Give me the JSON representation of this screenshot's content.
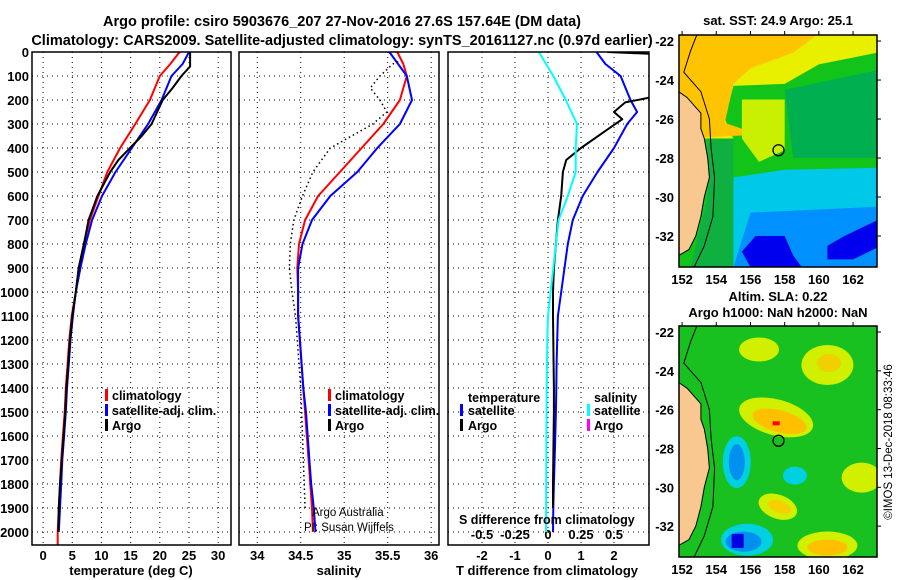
{
  "title": {
    "line1": "Argo profile: csiro 5903676_207 27-Nov-2016 27.6S 157.64E (DM data)",
    "line2": "Climatology: CARS2009. Satellite-adjusted climatology: synTS_20161127.nc (0.97d earlier)"
  },
  "depth_axis": {
    "ticks": [
      "0",
      "100",
      "200",
      "300",
      "400",
      "500",
      "600",
      "700",
      "800",
      "900",
      "1000",
      "1100",
      "1200",
      "1300",
      "1400",
      "1500",
      "1600",
      "1700",
      "1800",
      "1900",
      "2000"
    ]
  },
  "chart_data": [
    {
      "id": "temperature",
      "type": "line",
      "xlabel": "temperature (deg C)",
      "ylabel": "depth",
      "xlim": [
        -1.9,
        32.2
      ],
      "ylim": [
        2054,
        0
      ],
      "xticks": [
        "0",
        "5",
        "10",
        "15",
        "20",
        "25",
        "30"
      ],
      "xtick_values": [
        0,
        5,
        10,
        15,
        20,
        25,
        30
      ],
      "grid": true,
      "legend": {
        "placement": "lower-center",
        "items": [
          {
            "label": "climatology",
            "color": "#ff0000"
          },
          {
            "label": "satellite-adj. clim.",
            "color": "#0000ff"
          },
          {
            "label": "Argo",
            "color": "#000000"
          }
        ]
      },
      "series": [
        {
          "name": "climatology",
          "color": "#ff0000",
          "depth": [
            0,
            50,
            100,
            200,
            300,
            400,
            500,
            600,
            700,
            800,
            900,
            1000,
            1100,
            1200,
            1300,
            1400,
            1500,
            1600,
            1700,
            1800,
            1900,
            2000,
            2054
          ],
          "values": [
            23.4,
            21.8,
            20.0,
            18.3,
            15.8,
            13.2,
            11.0,
            9.5,
            8.0,
            7.0,
            6.1,
            5.6,
            4.9,
            4.5,
            4.2,
            3.9,
            3.7,
            3.4,
            3.1,
            2.9,
            2.7,
            2.5,
            2.5
          ]
        },
        {
          "name": "satellite-adj. clim.",
          "color": "#0000ff",
          "depth": [
            0,
            50,
            100,
            200,
            300,
            400,
            500,
            600,
            700,
            800,
            900,
            1000,
            1100,
            1200,
            1300,
            1400,
            1500,
            1600,
            1700,
            1800,
            1900,
            2000
          ],
          "values": [
            25.0,
            23.9,
            22.0,
            20.3,
            18.0,
            15.2,
            12.4,
            10.1,
            8.4,
            7.3,
            6.4,
            5.6,
            5.1,
            4.7,
            4.4,
            4.1,
            3.9,
            3.6,
            3.3,
            3.1,
            2.9,
            2.7
          ]
        },
        {
          "name": "Argo",
          "color": "#000000",
          "depth": [
            0,
            60,
            100,
            150,
            200,
            300,
            350,
            400,
            450,
            500,
            600,
            700,
            800,
            900,
            1000,
            1100,
            1200,
            1300,
            1400,
            1500,
            1600,
            1700,
            1800,
            1900,
            2000
          ],
          "values": [
            25.2,
            25.2,
            23.7,
            22.2,
            20.5,
            18.6,
            16.9,
            14.9,
            12.9,
            11.5,
            9.3,
            7.8,
            7.0,
            6.1,
            5.6,
            5.0,
            4.6,
            4.3,
            4.0,
            3.8,
            3.5,
            3.2,
            2.9,
            2.7,
            2.6
          ]
        }
      ]
    },
    {
      "id": "salinity",
      "type": "line",
      "xlabel": "salinity",
      "ylabel": "depth",
      "xlim": [
        33.79,
        36.09
      ],
      "ylim": [
        2054,
        0
      ],
      "xticks": [
        "34",
        "34.5",
        "35",
        "35.5",
        "36"
      ],
      "xtick_values": [
        34,
        34.5,
        35,
        35.5,
        36
      ],
      "grid": true,
      "annotations": [
        "Argo Australia",
        "PI: Susan Wijffels"
      ],
      "legend": {
        "placement": "lower-right",
        "items": [
          {
            "label": "climatology",
            "color": "#ff0000"
          },
          {
            "label": "satellite-adj. clim.",
            "color": "#0000ff"
          },
          {
            "label": "Argo",
            "color": "#000000"
          }
        ]
      },
      "series": [
        {
          "name": "climatology",
          "color": "#ff0000",
          "depth": [
            0,
            50,
            100,
            200,
            300,
            400,
            500,
            600,
            700,
            800,
            900,
            1000,
            1100,
            1200,
            1300,
            1400,
            1500,
            1600,
            1700,
            1800,
            1900,
            2000
          ],
          "values": [
            35.61,
            35.68,
            35.72,
            35.64,
            35.45,
            35.2,
            34.95,
            34.7,
            34.55,
            34.48,
            34.46,
            34.47,
            34.47,
            34.49,
            34.51,
            34.53,
            34.55,
            34.57,
            34.59,
            34.61,
            34.63,
            34.64
          ]
        },
        {
          "name": "satellite-adj. clim.",
          "color": "#0000ff",
          "depth": [
            0,
            100,
            200,
            300,
            400,
            500,
            600,
            700,
            800,
            900,
            1000,
            1100,
            1200,
            1300,
            1400,
            1500,
            1600,
            1700,
            1800,
            1900,
            2000
          ],
          "values": [
            35.52,
            35.72,
            35.78,
            35.64,
            35.38,
            35.15,
            34.84,
            34.63,
            34.52,
            34.47,
            34.47,
            34.47,
            34.49,
            34.51,
            34.53,
            34.56,
            34.58,
            34.6,
            34.62,
            34.65,
            34.67
          ]
        },
        {
          "name": "Argo",
          "color": "#000000",
          "style": "dotted",
          "depth": [
            40,
            50,
            100,
            150,
            200,
            250,
            300,
            400,
            500,
            600,
            700,
            800,
            900,
            1000,
            1100,
            1200,
            1300,
            1400,
            1500,
            1600,
            1700,
            1800,
            1900
          ],
          "values": [
            35.62,
            35.56,
            35.41,
            35.3,
            35.41,
            35.49,
            35.33,
            34.84,
            34.64,
            34.52,
            34.42,
            34.38,
            34.37,
            34.4,
            34.44,
            34.46,
            34.48,
            34.5,
            34.51,
            34.52,
            34.53,
            34.54,
            34.55
          ]
        }
      ]
    },
    {
      "id": "difference",
      "type": "line",
      "xlabel": "T difference from climatology",
      "secondary_xlabel": "S difference from climatology",
      "ylabel": "depth",
      "xlim": [
        -3.03,
        3.06
      ],
      "secondary_xlim": [
        -0.7575,
        0.765
      ],
      "ylim": [
        2054,
        0
      ],
      "xticks": [
        "-2",
        "-1",
        "0",
        "1",
        "2"
      ],
      "xtick_values": [
        -2,
        -1,
        0,
        1,
        2
      ],
      "secondary_xticks": [
        "-0.5",
        "-0.25",
        "0",
        "0.25",
        "0.5"
      ],
      "secondary_xtick_values": [
        -0.5,
        -0.25,
        0,
        0.25,
        0.5
      ],
      "grid": true,
      "legend": {
        "placement": "lower-center",
        "temperature_header": "temperature",
        "salinity_header": "salinity",
        "items": [
          {
            "group": "temperature",
            "label": "satellite",
            "color": "#0000ff"
          },
          {
            "group": "temperature",
            "label": "Argo",
            "color": "#000000"
          },
          {
            "group": "salinity",
            "label": "satellite",
            "color": "#00ffff"
          },
          {
            "group": "salinity",
            "label": "Argo",
            "color": "#ff00ff"
          }
        ]
      },
      "series": [
        {
          "name": "temperature satellite",
          "axis": "T",
          "color": "#0000ff",
          "depth": [
            0,
            50,
            100,
            200,
            250,
            300,
            400,
            500,
            600,
            700,
            800,
            900,
            1000,
            1100,
            1200,
            1300,
            1400,
            1500,
            1600,
            1700,
            1800,
            1900,
            2000
          ],
          "values": [
            1.47,
            1.74,
            2.2,
            2.5,
            2.7,
            2.4,
            2.0,
            1.5,
            1.05,
            0.75,
            0.6,
            0.5,
            0.4,
            0.3,
            0.28,
            0.26,
            0.25,
            0.24,
            0.22,
            0.2,
            0.18,
            0.16,
            0.15
          ]
        },
        {
          "name": "temperature Argo",
          "axis": "T",
          "color": "#000000",
          "depth": [
            0,
            10,
            60,
            150,
            192,
            210,
            250,
            280,
            320,
            400,
            450,
            500,
            600,
            700,
            800,
            900,
            1000,
            1100,
            1200,
            1300,
            1400,
            1500,
            1600,
            1700,
            1800,
            1900
          ],
          "values": [
            1.8,
            3.5,
            4.5,
            4.0,
            3.0,
            2.34,
            2.0,
            2.25,
            1.83,
            1.0,
            0.55,
            0.45,
            0.4,
            0.3,
            0.24,
            0.18,
            0.15,
            0.15,
            0.16,
            0.17,
            0.18,
            0.18,
            0.17,
            0.16,
            0.15,
            0.15
          ]
        },
        {
          "name": "salinity satellite",
          "axis": "S",
          "color": "#00ffff",
          "depth": [
            0,
            100,
            200,
            300,
            400,
            500,
            600,
            700,
            800,
            900,
            1000,
            1100,
            1200,
            1400,
            1600,
            1800,
            2000
          ],
          "values": [
            -0.07,
            0.04,
            0.135,
            0.22,
            0.21,
            0.21,
            0.15,
            0.08,
            0.06,
            0.04,
            0.02,
            0.0,
            -0.005,
            -0.01,
            -0.012,
            -0.014,
            -0.015
          ]
        }
      ]
    },
    {
      "id": "sst_map",
      "type": "heatmap",
      "title": "sat. SST: 24.9 Argo: 25.1",
      "xticks": [
        "152",
        "154",
        "156",
        "158",
        "160",
        "162"
      ],
      "yticks": [
        "-22",
        "-24",
        "-26",
        "-28",
        "-30",
        "-32"
      ],
      "xlim": [
        151.82,
        163.4
      ],
      "ylim": [
        -33.59,
        -21.69
      ],
      "marker": {
        "lon": 157.64,
        "lat": -27.6
      }
    },
    {
      "id": "sla_map",
      "type": "heatmap",
      "title": "Altim. SLA: 0.22",
      "subtitle": "Argo h1000: NaN h2000: NaN",
      "xticks": [
        "152",
        "154",
        "156",
        "158",
        "160",
        "162"
      ],
      "yticks": [
        "-22",
        "-24",
        "-26",
        "-28",
        "-30",
        "-32"
      ],
      "xlim": [
        151.82,
        163.4
      ],
      "ylim": [
        -33.59,
        -21.69
      ],
      "marker": {
        "lon": 157.64,
        "lat": -27.6
      }
    }
  ],
  "credit": "©IMOS 13-Dec-2018 08:33:46"
}
